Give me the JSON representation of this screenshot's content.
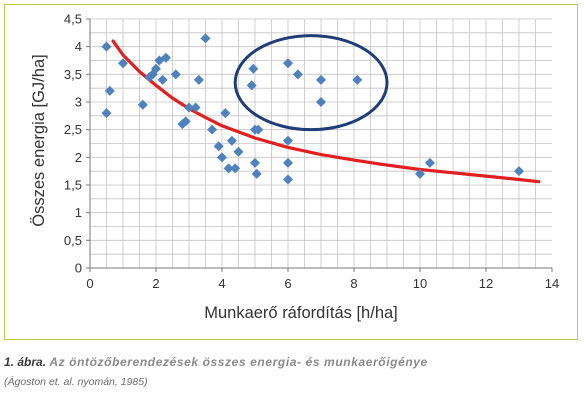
{
  "chart_data": {
    "type": "scatter",
    "xlabel": "Munkaerő ráfordítás [h/ha]",
    "ylabel": "Összes energia [GJ/ha]",
    "xlim": [
      0,
      14
    ],
    "ylim": [
      0,
      4.5
    ],
    "xticks": [
      "0",
      "2",
      "4",
      "6",
      "8",
      "10",
      "12",
      "14"
    ],
    "yticks": [
      "0",
      "0,5",
      "1",
      "1,5",
      "2",
      "2,5",
      "3",
      "3,5",
      "4",
      "4,5"
    ],
    "grid": true,
    "marker_color": "#4f81bd",
    "trend_color": "#e31e1e",
    "ellipse_color": "#1f3e78",
    "points": [
      {
        "x": 0.5,
        "y": 4.0
      },
      {
        "x": 0.5,
        "y": 2.8
      },
      {
        "x": 0.6,
        "y": 3.2
      },
      {
        "x": 1.0,
        "y": 3.7
      },
      {
        "x": 1.6,
        "y": 2.95
      },
      {
        "x": 1.8,
        "y": 3.45
      },
      {
        "x": 1.9,
        "y": 3.5
      },
      {
        "x": 2.0,
        "y": 3.6
      },
      {
        "x": 2.1,
        "y": 3.75
      },
      {
        "x": 2.2,
        "y": 3.4
      },
      {
        "x": 2.3,
        "y": 3.8
      },
      {
        "x": 2.6,
        "y": 3.5
      },
      {
        "x": 2.8,
        "y": 2.6
      },
      {
        "x": 2.9,
        "y": 2.65
      },
      {
        "x": 3.0,
        "y": 2.9
      },
      {
        "x": 3.2,
        "y": 2.9
      },
      {
        "x": 3.3,
        "y": 3.4
      },
      {
        "x": 3.5,
        "y": 4.15
      },
      {
        "x": 3.7,
        "y": 2.5
      },
      {
        "x": 3.9,
        "y": 2.2
      },
      {
        "x": 4.0,
        "y": 2.0
      },
      {
        "x": 4.1,
        "y": 2.8
      },
      {
        "x": 4.2,
        "y": 1.8
      },
      {
        "x": 4.3,
        "y": 2.3
      },
      {
        "x": 4.4,
        "y": 1.8
      },
      {
        "x": 4.5,
        "y": 2.1
      },
      {
        "x": 4.9,
        "y": 3.3
      },
      {
        "x": 4.95,
        "y": 3.6
      },
      {
        "x": 5.0,
        "y": 2.5
      },
      {
        "x": 5.0,
        "y": 1.9
      },
      {
        "x": 5.05,
        "y": 1.7
      },
      {
        "x": 5.1,
        "y": 2.5
      },
      {
        "x": 6.0,
        "y": 3.7
      },
      {
        "x": 6.0,
        "y": 2.3
      },
      {
        "x": 6.0,
        "y": 1.9
      },
      {
        "x": 6.0,
        "y": 1.6
      },
      {
        "x": 6.3,
        "y": 3.5
      },
      {
        "x": 7.0,
        "y": 3.4
      },
      {
        "x": 7.0,
        "y": 3.0
      },
      {
        "x": 8.1,
        "y": 3.4
      },
      {
        "x": 10.0,
        "y": 1.7
      },
      {
        "x": 10.3,
        "y": 1.9
      },
      {
        "x": 13.0,
        "y": 1.75
      }
    ],
    "trend": [
      {
        "x": 0.7,
        "y": 4.1
      },
      {
        "x": 1.0,
        "y": 3.85
      },
      {
        "x": 1.5,
        "y": 3.55
      },
      {
        "x": 2.0,
        "y": 3.3
      },
      {
        "x": 2.5,
        "y": 3.07
      },
      {
        "x": 3.0,
        "y": 2.88
      },
      {
        "x": 3.5,
        "y": 2.72
      },
      {
        "x": 4.0,
        "y": 2.57
      },
      {
        "x": 5.0,
        "y": 2.35
      },
      {
        "x": 6.0,
        "y": 2.18
      },
      {
        "x": 7.0,
        "y": 2.05
      },
      {
        "x": 8.0,
        "y": 1.95
      },
      {
        "x": 9.0,
        "y": 1.86
      },
      {
        "x": 10.0,
        "y": 1.78
      },
      {
        "x": 11.0,
        "y": 1.72
      },
      {
        "x": 12.0,
        "y": 1.66
      },
      {
        "x": 13.0,
        "y": 1.6
      },
      {
        "x": 13.6,
        "y": 1.56
      }
    ],
    "ellipse": {
      "cx": 6.7,
      "cy": 3.35,
      "rx": 2.3,
      "ry": 0.85
    }
  },
  "caption": {
    "number": "1. ábra.",
    "title": "Az öntözőberendezések összes energia- és munkaerőigénye",
    "source": "(Ágoston et. al. nyomán, 1985)"
  }
}
